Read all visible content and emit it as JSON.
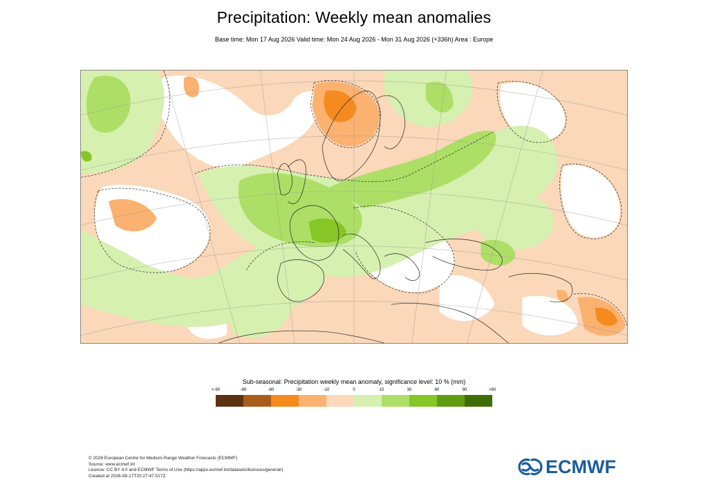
{
  "header": {
    "title": "Precipitation: Weekly mean anomalies",
    "subtitle": "Base time: Mon 17 Aug 2026 Valid time: Mon 24 Aug 2026 - Mon 31 Aug 2026 (+336h) Area : Europe"
  },
  "legend": {
    "title": "Sub-seasonal: Precipitation weekly mean anomaly, significance level: 10 % (mm)",
    "ticks": [
      "<-90",
      "-90",
      "-60",
      "-30",
      "-10",
      "0",
      "10",
      "30",
      "60",
      "90",
      ">90"
    ],
    "colors": [
      "#5c3310",
      "#a95c1a",
      "#f58a1f",
      "#fbb16f",
      "#fad8b9",
      "#d6f0b0",
      "#addf66",
      "#86c626",
      "#5f9c12",
      "#3f6d06"
    ]
  },
  "map": {
    "background_color": "#fad8b9",
    "land_color": "#ffffff"
  },
  "footer": {
    "lines": [
      "© 2026 European Centre for Medium-Range Weather Forecasts (ECMWF)",
      "Source: www.ecmwf.int",
      "Licence: CC BY 4.0 and ECMWF Terms of Use (https://apps.ecmwf.int/datasets/licences/general/)",
      "Created at 2026-08-17T20:27:47.517Z"
    ]
  },
  "logo": {
    "text": "ECMWF",
    "color": "#1a5d9c",
    "icon": "ecmwf-logo-icon"
  }
}
